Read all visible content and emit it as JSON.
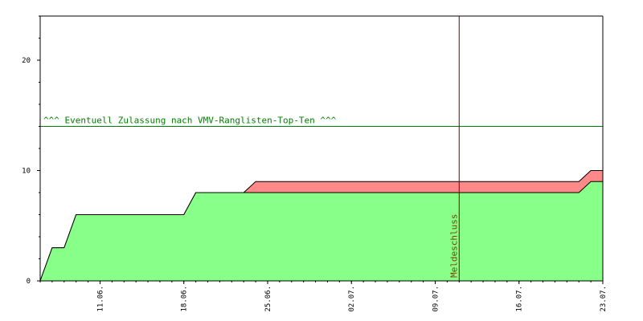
{
  "chart_data": {
    "type": "area",
    "title": "",
    "xlabel": "",
    "ylabel": "",
    "x_ticks": [
      "11.06.",
      "18.06.",
      "25.06.",
      "02.07.",
      "09.07.",
      "16.07.",
      "23.07."
    ],
    "y_ticks": [
      0,
      10,
      20
    ],
    "ylim": [
      0,
      24
    ],
    "grid": false,
    "series": [
      {
        "color": "#88ff88",
        "points": [
          {
            "x": "2026-06-06",
            "y": 0
          },
          {
            "x": "2026-06-07",
            "y": 3
          },
          {
            "x": "2026-06-08",
            "y": 3
          },
          {
            "x": "2026-06-09",
            "y": 6
          },
          {
            "x": "2026-06-18",
            "y": 6
          },
          {
            "x": "2026-06-19",
            "y": 8
          },
          {
            "x": "2026-07-21",
            "y": 8
          },
          {
            "x": "2026-07-22",
            "y": 9
          },
          {
            "x": "2026-07-23",
            "y": 9
          }
        ]
      },
      {
        "color": "#ff8888",
        "points": [
          {
            "x": "2026-06-06",
            "y": 0
          },
          {
            "x": "2026-06-07",
            "y": 3
          },
          {
            "x": "2026-06-08",
            "y": 3
          },
          {
            "x": "2026-06-09",
            "y": 6
          },
          {
            "x": "2026-06-18",
            "y": 6
          },
          {
            "x": "2026-06-19",
            "y": 8
          },
          {
            "x": "2026-06-23",
            "y": 8
          },
          {
            "x": "2026-06-24",
            "y": 9
          },
          {
            "x": "2026-07-21",
            "y": 9
          },
          {
            "x": "2026-07-22",
            "y": 10
          },
          {
            "x": "2026-07-23",
            "y": 10
          }
        ]
      }
    ],
    "threshold": {
      "y": 14,
      "label": "^^^ Eventuell Zulassung nach VMV-Ranglisten-Top-Ten ^^^",
      "color": "#008000"
    },
    "marker": {
      "x": "2026-07-11",
      "label": "Meldeschluss",
      "color": "#800000",
      "text_color": "#804000"
    }
  }
}
